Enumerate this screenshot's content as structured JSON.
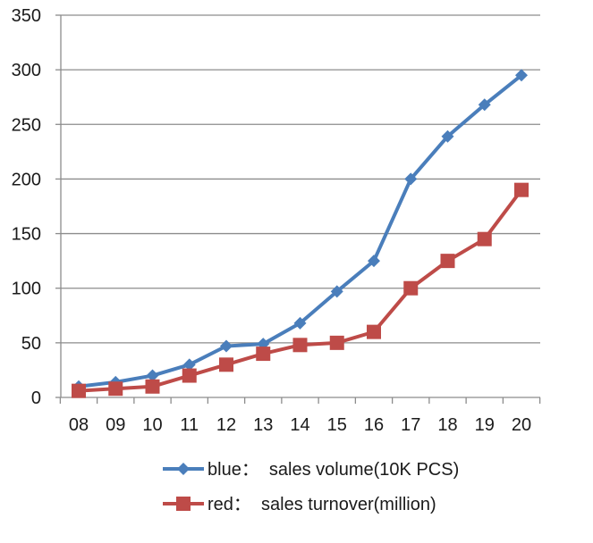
{
  "chart_data": {
    "type": "line",
    "title": "",
    "xlabel": "",
    "ylabel": "",
    "categories": [
      "08",
      "09",
      "10",
      "11",
      "12",
      "13",
      "14",
      "15",
      "16",
      "17",
      "18",
      "19",
      "20"
    ],
    "ylim": [
      0,
      350
    ],
    "yticks": [
      0,
      50,
      100,
      150,
      200,
      250,
      300,
      350
    ],
    "grid": true,
    "legend_position": "bottom",
    "series": [
      {
        "name": "blue：  sales volume(10K PCS)",
        "color": "#4a7ebb",
        "marker": "diamond",
        "values": [
          10,
          14,
          20,
          30,
          47,
          49,
          68,
          97,
          125,
          200,
          239,
          268,
          295
        ]
      },
      {
        "name": "red：  sales turnover(million)",
        "color": "#be4b48",
        "marker": "square",
        "values": [
          6,
          8,
          10,
          20,
          30,
          40,
          48,
          50,
          60,
          100,
          125,
          145,
          190
        ]
      }
    ]
  }
}
